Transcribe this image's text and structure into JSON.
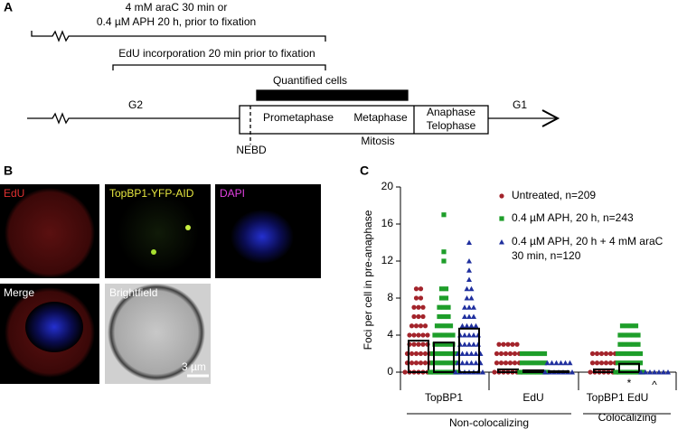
{
  "panel_a": {
    "label": "A",
    "drug_line1": "4 mM araC 30 min or",
    "drug_line2": "0.4 µM APH 20 h, prior to fixation",
    "edu": "EdU incorporation 20 min prior to fixation",
    "quantified": "Quantified cells",
    "g2": "G2",
    "prometaphase": "Prometaphase",
    "metaphase": "Metaphase",
    "anaphase": "Anaphase",
    "telophase": "Telophase",
    "g1": "G1",
    "nebd": "NEBD",
    "mitosis": "Mitosis"
  },
  "panel_b": {
    "label": "B",
    "images": [
      "EdU",
      "TopBP1-YFP-AID",
      "DAPI",
      "Merge",
      "Brightfield"
    ],
    "scale_bar": "3 µm"
  },
  "chart_data": {
    "type": "dot-bar",
    "panel_label": "C",
    "ylabel": "Foci per cell in pre-anaphase",
    "ylim": [
      0,
      20
    ],
    "yticks": [
      0,
      4,
      8,
      12,
      16,
      20
    ],
    "categories": [
      "TopBP1",
      "EdU",
      "TopBP1 EdU"
    ],
    "group_labels": [
      "Non-colocalizing",
      "Colocalizing"
    ],
    "series": [
      {
        "name": "Untreated, n=209",
        "color": "#a3242b",
        "marker": "circle",
        "values": [
          3.4,
          0.3,
          0.3
        ],
        "points": [
          [
            0,
            1,
            2,
            3,
            4,
            5,
            6,
            7,
            8,
            9
          ],
          [
            0,
            1,
            2,
            3
          ],
          [
            0,
            1,
            2
          ]
        ]
      },
      {
        "name": "0.4 µM APH, 20 h, n=243",
        "color": "#1e9e2a",
        "marker": "square",
        "values": [
          3.2,
          0.2,
          0.9
        ],
        "points": [
          [
            0,
            1,
            2,
            3,
            4,
            5,
            6,
            7,
            8,
            9,
            12,
            13,
            17
          ],
          [
            0,
            1,
            2
          ],
          [
            0,
            1,
            2,
            3,
            4,
            5
          ]
        ]
      },
      {
        "name": [
          "0.4 µM APH, 20 h + 4 mM araC",
          "30 min, n=120"
        ],
        "color": "#1f2f9e",
        "marker": "triangle",
        "values": [
          4.7,
          0.1,
          0
        ],
        "points": [
          [
            0,
            1,
            2,
            3,
            4,
            5,
            6,
            7,
            8,
            9,
            10,
            11,
            12,
            14
          ],
          [
            0,
            1
          ],
          [
            0
          ]
        ]
      }
    ],
    "annotations": [
      "*",
      "^"
    ]
  }
}
